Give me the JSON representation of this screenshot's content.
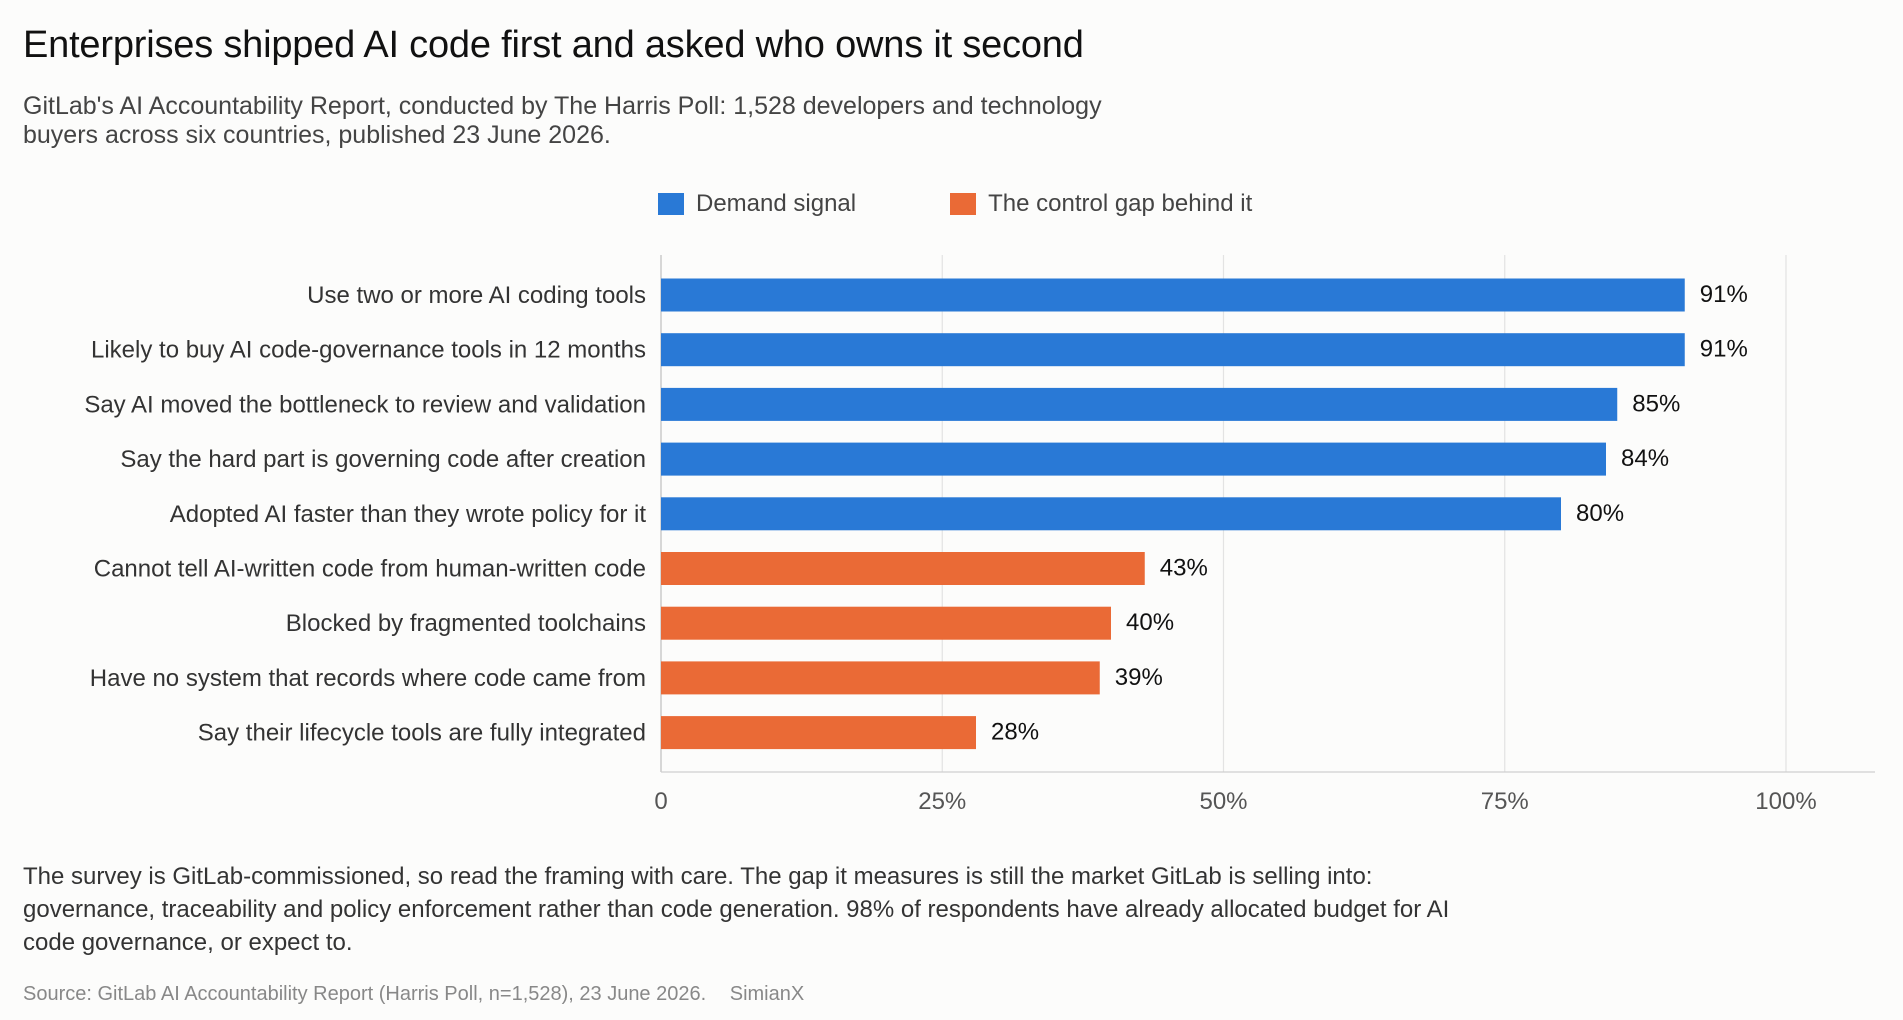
{
  "header": {
    "title": "Enterprises shipped AI code first and asked who owns it second",
    "subtitle": "GitLab's AI Accountability Report, conducted by The Harris Poll: 1,528 developers and technology buyers across six countries, published 23 June 2026."
  },
  "legend": {
    "items": [
      {
        "label": "Demand signal",
        "color": "#2979d6"
      },
      {
        "label": "The control gap behind it",
        "color": "#ea6a36"
      }
    ],
    "placement": "top"
  },
  "chart_data": {
    "type": "bar",
    "orientation": "horizontal",
    "categories": [
      "Use two or more AI coding tools",
      "Likely to buy AI code-governance tools in 12 months",
      "Say AI moved the bottleneck to review and validation",
      "Say the hard part is governing code after creation",
      "Adopted AI faster than they wrote policy for it",
      "Cannot tell AI-written code from human-written code",
      "Blocked by fragmented toolchains",
      "Have no system that records where code came from",
      "Say their lifecycle tools are fully integrated"
    ],
    "values": [
      91,
      91,
      85,
      84,
      80,
      43,
      40,
      39,
      28
    ],
    "value_labels": [
      "91%",
      "91%",
      "85%",
      "84%",
      "80%",
      "43%",
      "40%",
      "39%",
      "28%"
    ],
    "groups": [
      "Demand signal",
      "Demand signal",
      "Demand signal",
      "Demand signal",
      "Demand signal",
      "The control gap behind it",
      "The control gap behind it",
      "The control gap behind it",
      "The control gap behind it"
    ],
    "xlim": [
      0,
      100
    ],
    "xticks": [
      0,
      25,
      50,
      75,
      100
    ],
    "xtick_labels": [
      "0",
      "25%",
      "50%",
      "75%",
      "100%"
    ],
    "grid": "vertical",
    "xlabel": "",
    "ylabel": ""
  },
  "footer": {
    "note": "The survey is GitLab-commissioned, so read the framing with care. The gap it measures is still the market GitLab is selling into: governance, traceability and policy enforcement rather than code generation. 98% of respondents have already allocated budget for AI code governance, or expect to.",
    "source": "Source: GitLab AI Accountability Report (Harris Poll, n=1,528), 23 June 2026.",
    "brand": "SimianX"
  }
}
